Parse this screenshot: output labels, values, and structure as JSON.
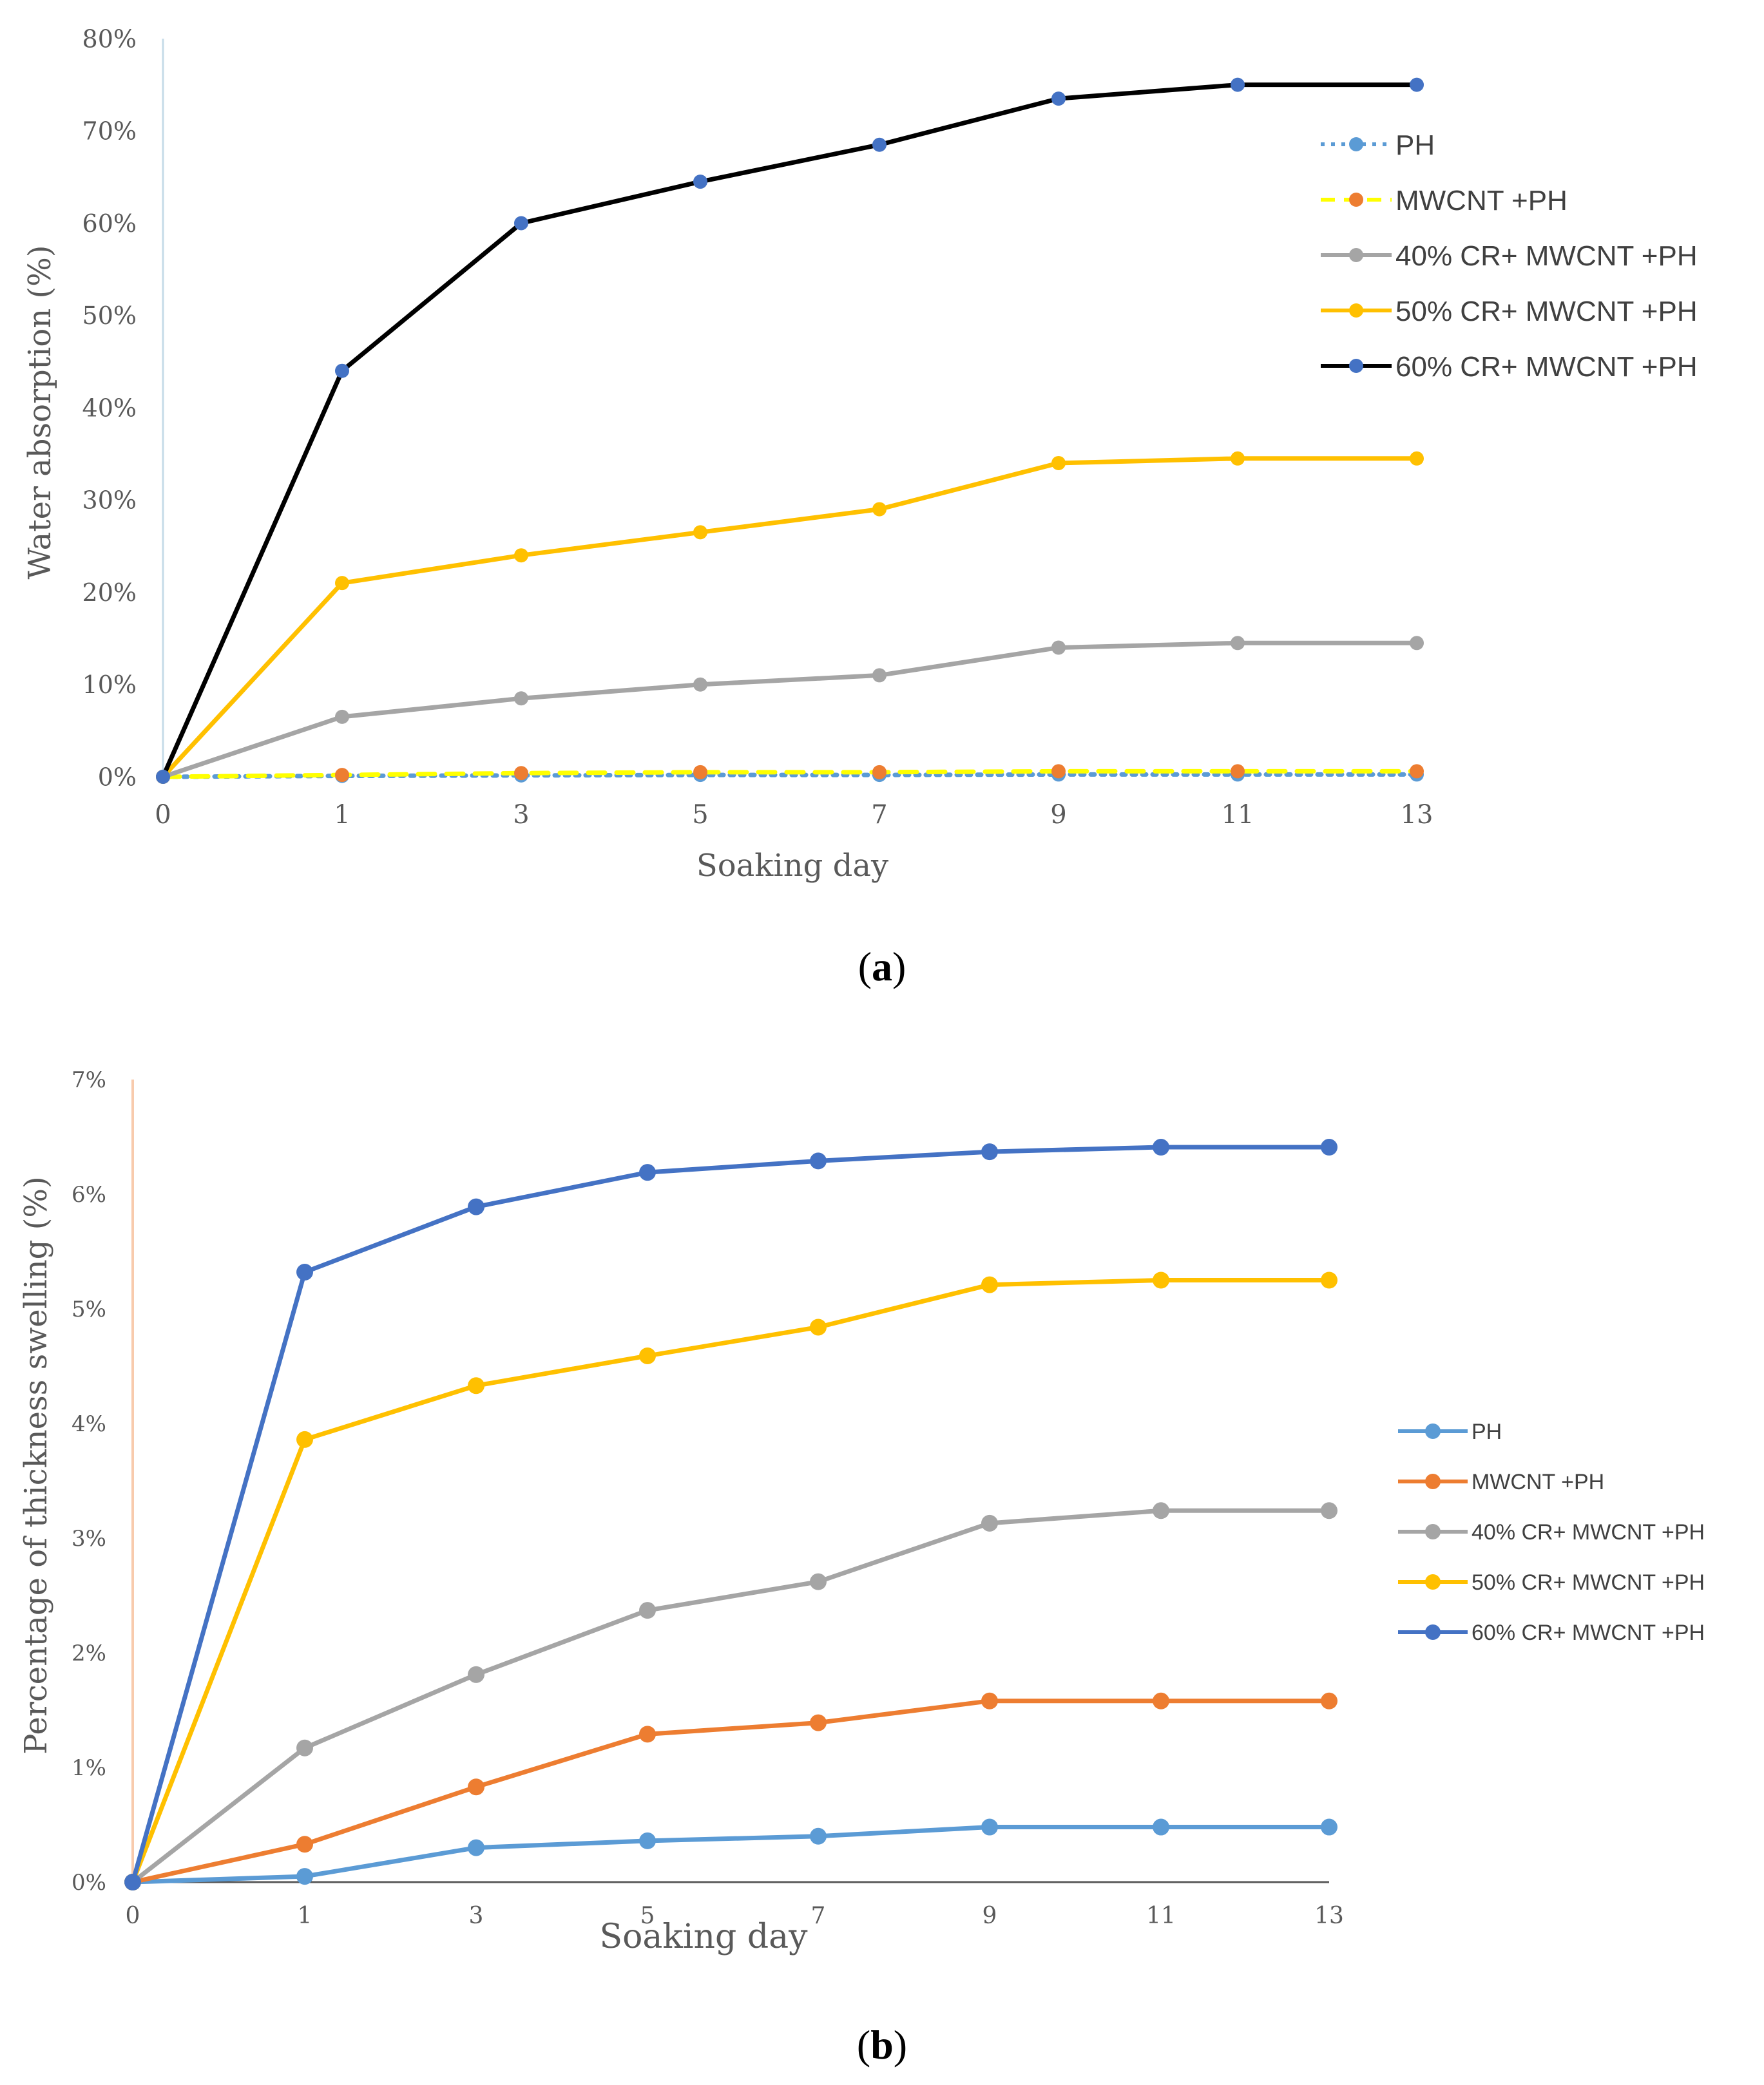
{
  "chart_data": [
    {
      "id": "a",
      "type": "line",
      "panel_label": "a",
      "title": "",
      "xlabel": "Soaking  day",
      "ylabel": "Water  absorption  (%)",
      "x": [
        0,
        1,
        3,
        5,
        7,
        9,
        11,
        13
      ],
      "x_tick_labels": [
        "0",
        "1",
        "3",
        "5",
        "7",
        "9",
        "11",
        "13"
      ],
      "ylim": [
        0,
        80
      ],
      "y_ticks": [
        0,
        10,
        20,
        30,
        40,
        50,
        60,
        70,
        80
      ],
      "y_tick_labels": [
        "0%",
        "10%",
        "20%",
        "30%",
        "40%",
        "50%",
        "60%",
        "70%",
        "80%"
      ],
      "legend_position": "top-right",
      "series": [
        {
          "name": "PH",
          "color": "#5b9bd5",
          "marker_color": "#5b9bd5",
          "dash": "dotted",
          "values": [
            0,
            0.1,
            0.15,
            0.2,
            0.2,
            0.25,
            0.25,
            0.25
          ]
        },
        {
          "name": "MWCNT +PH",
          "color": "#ffff00",
          "marker_color": "#ed7d31",
          "dash": "dashed",
          "values": [
            0,
            0.2,
            0.4,
            0.5,
            0.5,
            0.6,
            0.6,
            0.6
          ]
        },
        {
          "name": "40% CR+ MWCNT +PH",
          "color": "#a5a5a5",
          "marker_color": "#a5a5a5",
          "dash": "solid",
          "values": [
            0,
            6.5,
            8.5,
            10,
            11,
            14,
            14.5,
            14.5
          ]
        },
        {
          "name": "50% CR+ MWCNT +PH",
          "color": "#ffc000",
          "marker_color": "#ffc000",
          "dash": "solid",
          "values": [
            0,
            21,
            24,
            26.5,
            29,
            34,
            34.5,
            34.5
          ]
        },
        {
          "name": "60% CR+ MWCNT +PH",
          "color": "#000000",
          "marker_color": "#4472c4",
          "dash": "solid",
          "values": [
            0,
            44,
            60,
            64.5,
            68.5,
            73.5,
            75,
            75
          ]
        }
      ]
    },
    {
      "id": "b",
      "type": "line",
      "panel_label": "b",
      "title": "",
      "xlabel": "Soaking day",
      "ylabel": "Percentage of thickness swelling (%)",
      "x": [
        0,
        1,
        3,
        5,
        7,
        9,
        11,
        13
      ],
      "x_tick_labels": [
        "0",
        "1",
        "3",
        "5",
        "7",
        "9",
        "11",
        "13"
      ],
      "ylim": [
        0,
        7
      ],
      "y_ticks": [
        0,
        1,
        2,
        3,
        4,
        5,
        6,
        7
      ],
      "y_tick_labels": [
        "0%",
        "1%",
        "2%",
        "3%",
        "4%",
        "5%",
        "6%",
        "7%"
      ],
      "legend_position": "right",
      "series": [
        {
          "name": "PH",
          "color": "#5b9bd5",
          "marker_color": "#5b9bd5",
          "dash": "solid",
          "values": [
            0,
            0.05,
            0.3,
            0.36,
            0.4,
            0.48,
            0.48,
            0.48
          ]
        },
        {
          "name": "MWCNT +PH",
          "color": "#ed7d31",
          "marker_color": "#ed7d31",
          "dash": "solid",
          "values": [
            0,
            0.33,
            0.83,
            1.29,
            1.39,
            1.58,
            1.58,
            1.58
          ]
        },
        {
          "name": "40% CR+ MWCNT +PH",
          "color": "#a5a5a5",
          "marker_color": "#a5a5a5",
          "dash": "solid",
          "values": [
            0,
            1.17,
            1.81,
            2.37,
            2.62,
            3.13,
            3.24,
            3.24
          ]
        },
        {
          "name": "50% CR+ MWCNT +PH",
          "color": "#ffc000",
          "marker_color": "#ffc000",
          "dash": "solid",
          "values": [
            0,
            3.86,
            4.33,
            4.59,
            4.84,
            5.21,
            5.25,
            5.25
          ]
        },
        {
          "name": "60% CR+ MWCNT +PH",
          "color": "#4472c4",
          "marker_color": "#4472c4",
          "dash": "solid",
          "values": [
            0,
            5.32,
            5.89,
            6.19,
            6.29,
            6.37,
            6.41,
            6.41
          ]
        }
      ]
    }
  ]
}
